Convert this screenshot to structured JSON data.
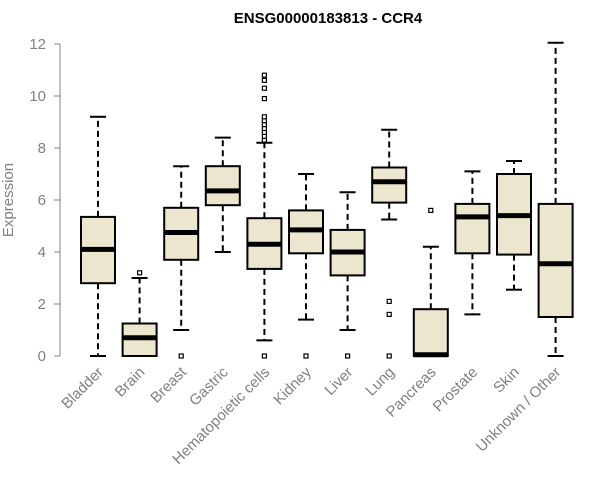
{
  "chart_data": {
    "type": "boxplot",
    "title": "ENSG00000183813 - CCR4",
    "ylabel": "Expression",
    "xlabel": "",
    "ylim": [
      0,
      12
    ],
    "yticks": [
      0,
      2,
      4,
      6,
      8,
      10,
      12
    ],
    "grid": false,
    "legend": "none",
    "box_fill": "#ede6cf",
    "box_stroke": "#000000",
    "categories": [
      "Bladder",
      "Brain",
      "Breast",
      "Gastric",
      "Hematopoietic cells",
      "Kidney",
      "Liver",
      "Lung",
      "Pancreas",
      "Prostate",
      "Skin",
      "Unknown / Other"
    ],
    "boxes": [
      {
        "category": "Bladder",
        "min": 0.0,
        "q1": 2.8,
        "median": 4.1,
        "q3": 5.35,
        "max": 9.2,
        "outliers": []
      },
      {
        "category": "Brain",
        "min": 0.0,
        "q1": 0.0,
        "median": 0.7,
        "q3": 1.25,
        "max": 3.0,
        "outliers": [
          3.2
        ]
      },
      {
        "category": "Breast",
        "min": 1.0,
        "q1": 3.7,
        "median": 4.75,
        "q3": 5.7,
        "max": 7.3,
        "outliers": [
          0.0
        ]
      },
      {
        "category": "Gastric",
        "min": 4.0,
        "q1": 5.8,
        "median": 6.35,
        "q3": 7.3,
        "max": 8.4,
        "outliers": []
      },
      {
        "category": "Hematopoietic cells",
        "min": 0.6,
        "q1": 3.35,
        "median": 4.3,
        "q3": 5.3,
        "max": 8.2,
        "outliers": [
          0.0,
          8.3,
          8.45,
          8.6,
          8.75,
          8.9,
          9.05,
          9.2,
          9.9,
          10.3,
          10.6,
          10.8
        ]
      },
      {
        "category": "Kidney",
        "min": 1.4,
        "q1": 3.95,
        "median": 4.85,
        "q3": 5.6,
        "max": 7.0,
        "outliers": [
          0.0
        ]
      },
      {
        "category": "Liver",
        "min": 1.0,
        "q1": 3.1,
        "median": 4.0,
        "q3": 4.85,
        "max": 6.3,
        "outliers": [
          0.0
        ]
      },
      {
        "category": "Lung",
        "min": 5.25,
        "q1": 5.9,
        "median": 6.7,
        "q3": 7.25,
        "max": 8.7,
        "outliers": [
          0.0,
          1.6,
          2.1
        ]
      },
      {
        "category": "Pancreas",
        "min": 0.0,
        "q1": 0.0,
        "median": 0.05,
        "q3": 1.8,
        "max": 4.2,
        "outliers": [
          5.6
        ]
      },
      {
        "category": "Prostate",
        "min": 1.6,
        "q1": 3.95,
        "median": 5.35,
        "q3": 5.85,
        "max": 7.1,
        "outliers": []
      },
      {
        "category": "Skin",
        "min": 2.55,
        "q1": 3.9,
        "median": 5.4,
        "q3": 7.0,
        "max": 7.5,
        "outliers": []
      },
      {
        "category": "Unknown / Other",
        "min": 0.0,
        "q1": 1.5,
        "median": 3.55,
        "q3": 5.85,
        "max": 12.05,
        "outliers": []
      }
    ]
  }
}
